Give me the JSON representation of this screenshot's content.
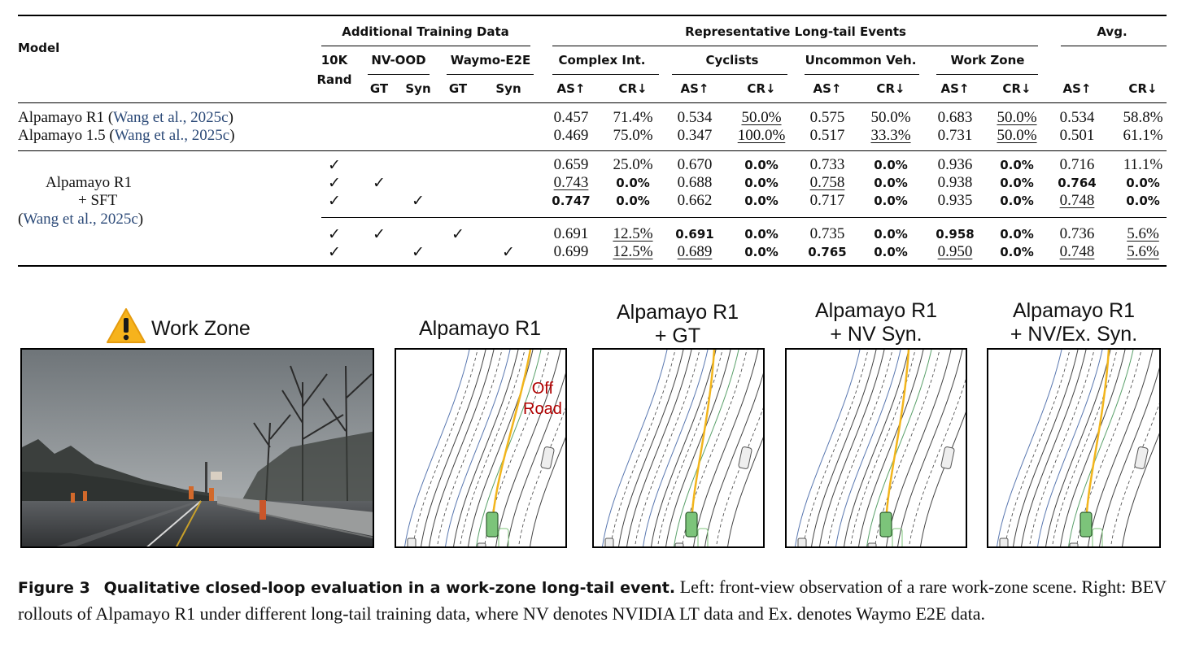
{
  "table": {
    "headers": {
      "model": "Model",
      "additional_training_data": "Additional Training Data",
      "representative_events": "Representative Long-tail Events",
      "avg": "Avg.",
      "rand_top": "10K",
      "rand_bottom": "Rand",
      "nv_ood": "NV-OOD",
      "waymo_e2e": "Waymo-E2E",
      "gt": "GT",
      "syn": "Syn",
      "events": [
        "Complex Int.",
        "Cyclists",
        "Uncommon Veh.",
        "Work Zone"
      ],
      "as": "AS↑",
      "cr": "CR↓"
    },
    "baselines": [
      {
        "model": "Alpamayo R1",
        "cite": "Wang et al., 2025c",
        "values": [
          "0.457",
          "71.4%",
          "0.534",
          "50.0%",
          "0.575",
          "50.0%",
          "0.683",
          "50.0%",
          "0.534",
          "58.8%"
        ],
        "underline": [
          false,
          false,
          false,
          true,
          false,
          false,
          false,
          true,
          false,
          false
        ],
        "bold": [
          false,
          false,
          false,
          false,
          false,
          false,
          false,
          false,
          false,
          false
        ]
      },
      {
        "model": "Alpamayo 1.5",
        "cite": "Wang et al., 2025c",
        "values": [
          "0.469",
          "75.0%",
          "0.347",
          "100.0%",
          "0.517",
          "33.3%",
          "0.731",
          "50.0%",
          "0.501",
          "61.1%"
        ],
        "underline": [
          false,
          false,
          false,
          true,
          false,
          true,
          false,
          true,
          false,
          false
        ],
        "bold": [
          false,
          false,
          false,
          false,
          false,
          false,
          false,
          false,
          false,
          false
        ]
      }
    ],
    "sft_model": {
      "line1": "Alpamayo R1",
      "line2": "+ SFT",
      "cite": "Wang et al., 2025c"
    },
    "check_mark": "✓",
    "sft_rows": [
      {
        "checks": [
          true,
          false,
          false,
          false,
          false
        ],
        "values": [
          "0.659",
          "25.0%",
          "0.670",
          "0.0%",
          "0.733",
          "0.0%",
          "0.936",
          "0.0%",
          "0.716",
          "11.1%"
        ],
        "underline": [
          false,
          false,
          false,
          false,
          false,
          false,
          false,
          false,
          false,
          false
        ],
        "bold": [
          false,
          false,
          false,
          true,
          false,
          true,
          false,
          true,
          false,
          false
        ]
      },
      {
        "checks": [
          true,
          true,
          false,
          false,
          false
        ],
        "values": [
          "0.743",
          "0.0%",
          "0.688",
          "0.0%",
          "0.758",
          "0.0%",
          "0.938",
          "0.0%",
          "0.764",
          "0.0%"
        ],
        "underline": [
          true,
          false,
          false,
          false,
          true,
          false,
          false,
          false,
          false,
          false
        ],
        "bold": [
          false,
          true,
          false,
          true,
          false,
          true,
          false,
          true,
          true,
          true
        ]
      },
      {
        "checks": [
          true,
          false,
          true,
          false,
          false
        ],
        "values": [
          "0.747",
          "0.0%",
          "0.662",
          "0.0%",
          "0.717",
          "0.0%",
          "0.935",
          "0.0%",
          "0.748",
          "0.0%"
        ],
        "underline": [
          false,
          false,
          false,
          false,
          false,
          false,
          false,
          false,
          true,
          false
        ],
        "bold": [
          true,
          true,
          false,
          true,
          false,
          true,
          false,
          true,
          false,
          true
        ]
      },
      {
        "checks": [
          true,
          true,
          false,
          true,
          false
        ],
        "values": [
          "0.691",
          "12.5%",
          "0.691",
          "0.0%",
          "0.735",
          "0.0%",
          "0.958",
          "0.0%",
          "0.736",
          "5.6%"
        ],
        "underline": [
          false,
          true,
          false,
          false,
          false,
          false,
          false,
          false,
          false,
          true
        ],
        "bold": [
          false,
          false,
          true,
          true,
          false,
          true,
          true,
          true,
          false,
          false
        ]
      },
      {
        "checks": [
          true,
          false,
          true,
          false,
          true
        ],
        "values": [
          "0.699",
          "12.5%",
          "0.689",
          "0.0%",
          "0.765",
          "0.0%",
          "0.950",
          "0.0%",
          "0.748",
          "5.6%"
        ],
        "underline": [
          false,
          true,
          true,
          false,
          false,
          false,
          true,
          false,
          true,
          true
        ],
        "bold": [
          false,
          false,
          false,
          true,
          true,
          true,
          false,
          true,
          false,
          false
        ]
      }
    ]
  },
  "figure": {
    "camera_title": "Work Zone",
    "warning_icon": "warning-triangle-icon",
    "panel_titles": [
      [
        "Alpamayo R1"
      ],
      [
        "Alpamayo R1",
        "+ GT"
      ],
      [
        "Alpamayo R1",
        "+ NV Syn."
      ],
      [
        "Alpamayo R1",
        "+ NV/Ex. Syn."
      ]
    ],
    "off_road_label": [
      "Off",
      "Road"
    ],
    "colors": {
      "trajectory": "#f2b51c",
      "ego": "#7cc47a",
      "lane": "#444444",
      "lane_blue": "#5a78b0",
      "lane_green": "#5aa06a",
      "off_road": "#b00000"
    }
  },
  "caption": {
    "label": "Figure 3",
    "title": "Qualitative closed-loop evaluation in a work-zone long-tail event.",
    "text": "Left: front-view observation of a rare work-zone scene. Right: BEV rollouts of Alpamayo R1 under different long-tail training data, where NV denotes NVIDIA LT data and Ex. denotes Waymo E2E data."
  }
}
